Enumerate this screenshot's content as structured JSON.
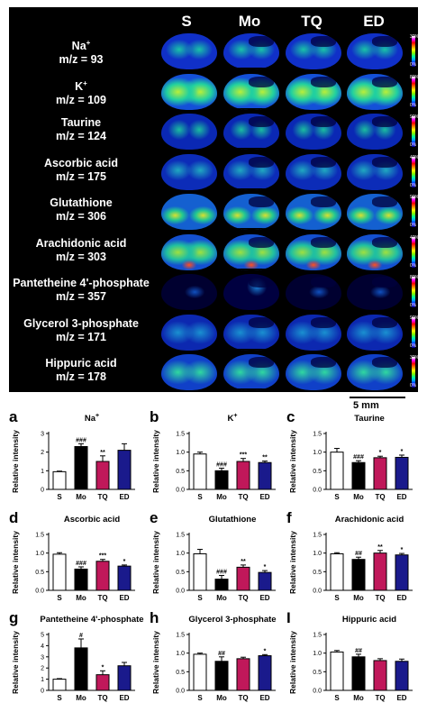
{
  "figure": {
    "columns": [
      "S",
      "Mo",
      "TQ",
      "ED"
    ],
    "scale_bar": "5 mm",
    "rows": [
      {
        "name": "Na",
        "sup": "+",
        "mz": "m/z = 93",
        "cbar_max": "30%",
        "cbar_min": "0%"
      },
      {
        "name": "K",
        "sup": "+",
        "mz": "m/z = 109",
        "cbar_max": "80%",
        "cbar_min": "0%"
      },
      {
        "name": "Taurine",
        "sup": "",
        "mz": "m/z = 124",
        "cbar_max": "90%",
        "cbar_min": "0%"
      },
      {
        "name": "Ascorbic acid",
        "sup": "",
        "mz": "m/z = 175",
        "cbar_max": "40%",
        "cbar_min": "0%"
      },
      {
        "name": "Glutathione",
        "sup": "",
        "mz": "m/z = 306",
        "cbar_max": "90%",
        "cbar_min": "0%"
      },
      {
        "name": "Arachidonic acid",
        "sup": "",
        "mz": "m/z = 303",
        "cbar_max": "40%",
        "cbar_min": "0%"
      },
      {
        "name": "Pantetheine 4'-phosphate",
        "sup": "",
        "mz": "m/z = 357",
        "cbar_max": "80%",
        "cbar_min": "0%"
      },
      {
        "name": "Glycerol 3-phosphate",
        "sup": "",
        "mz": "m/z = 171",
        "cbar_max": "90%",
        "cbar_min": "0%"
      },
      {
        "name": "Hippuric acid",
        "sup": "",
        "mz": "m/z = 178",
        "cbar_max": "30%",
        "cbar_min": "0%"
      }
    ],
    "colors": {
      "S": "#ffffff",
      "Mo": "#000000",
      "TQ": "#c0185a",
      "ED": "#1a1a8c"
    }
  },
  "chart_data": [
    {
      "panel": "a",
      "type": "bar",
      "title": "Na",
      "title_sup": "+",
      "ylabel": "Relative intensity",
      "categories": [
        "S",
        "Mo",
        "TQ",
        "ED"
      ],
      "values": [
        0.95,
        2.3,
        1.5,
        2.1
      ],
      "errors": [
        0.03,
        0.15,
        0.3,
        0.35
      ],
      "sig": [
        "",
        "###",
        "**",
        ""
      ],
      "ylim": [
        0,
        3
      ],
      "yticks": [
        "0",
        "1",
        "2",
        "3"
      ]
    },
    {
      "panel": "b",
      "type": "bar",
      "title": "K",
      "title_sup": "+",
      "ylabel": "Relative intensity",
      "categories": [
        "S",
        "Mo",
        "TQ",
        "ED"
      ],
      "values": [
        0.95,
        0.5,
        0.75,
        0.72
      ],
      "errors": [
        0.05,
        0.07,
        0.08,
        0.04
      ],
      "sig": [
        "",
        "###",
        "***",
        "**"
      ],
      "ylim": [
        0,
        1.5
      ],
      "yticks": [
        "0.0",
        "0.5",
        "1.0",
        "1.5"
      ]
    },
    {
      "panel": "c",
      "type": "bar",
      "title": "Taurine",
      "title_sup": "",
      "ylabel": "Relative intensity",
      "categories": [
        "S",
        "Mo",
        "TQ",
        "ED"
      ],
      "values": [
        1.0,
        0.72,
        0.85,
        0.86
      ],
      "errors": [
        0.1,
        0.05,
        0.04,
        0.06
      ],
      "sig": [
        "",
        "###",
        "*",
        "*"
      ],
      "ylim": [
        0,
        1.5
      ],
      "yticks": [
        "0.0",
        "0.5",
        "1.0",
        "1.5"
      ]
    },
    {
      "panel": "d",
      "type": "bar",
      "title": "Ascorbic acid",
      "title_sup": "",
      "ylabel": "Relative intensity",
      "categories": [
        "S",
        "Mo",
        "TQ",
        "ED"
      ],
      "values": [
        0.97,
        0.57,
        0.78,
        0.65
      ],
      "errors": [
        0.04,
        0.06,
        0.05,
        0.03
      ],
      "sig": [
        "",
        "###",
        "***",
        "*"
      ],
      "ylim": [
        0,
        1.5
      ],
      "yticks": [
        "0.0",
        "0.5",
        "1.0",
        "1.5"
      ]
    },
    {
      "panel": "e",
      "type": "bar",
      "title": "Glutathione",
      "title_sup": "",
      "ylabel": "Relative intensity",
      "categories": [
        "S",
        "Mo",
        "TQ",
        "ED"
      ],
      "values": [
        0.98,
        0.3,
        0.62,
        0.48
      ],
      "errors": [
        0.12,
        0.1,
        0.06,
        0.05
      ],
      "sig": [
        "",
        "###",
        "**",
        "*"
      ],
      "ylim": [
        0,
        1.5
      ],
      "yticks": [
        "0.0",
        "0.5",
        "1.0",
        "1.5"
      ]
    },
    {
      "panel": "f",
      "type": "bar",
      "title": "Arachidonic acid",
      "title_sup": "",
      "ylabel": "Relative intensity",
      "categories": [
        "S",
        "Mo",
        "TQ",
        "ED"
      ],
      "values": [
        0.98,
        0.83,
        1.0,
        0.95
      ],
      "errors": [
        0.03,
        0.06,
        0.07,
        0.04
      ],
      "sig": [
        "",
        "##",
        "**",
        "*"
      ],
      "ylim": [
        0,
        1.5
      ],
      "yticks": [
        "0.0",
        "0.5",
        "1.0",
        "1.5"
      ]
    },
    {
      "panel": "g",
      "type": "bar",
      "title": "Pantetheine 4'-phosphate",
      "title_sup": "",
      "ylabel": "Relative intensity",
      "categories": [
        "S",
        "Mo",
        "TQ",
        "ED"
      ],
      "values": [
        1.0,
        3.8,
        1.4,
        2.2
      ],
      "errors": [
        0.05,
        0.8,
        0.35,
        0.3
      ],
      "sig": [
        "",
        "#",
        "*",
        ""
      ],
      "ylim": [
        0,
        5
      ],
      "yticks": [
        "0",
        "1",
        "2",
        "3",
        "4",
        "5"
      ]
    },
    {
      "panel": "h",
      "type": "bar",
      "title": "Glycerol 3-phosphate",
      "title_sup": "",
      "ylabel": "Relative intensity",
      "categories": [
        "S",
        "Mo",
        "TQ",
        "ED"
      ],
      "values": [
        0.97,
        0.78,
        0.85,
        0.93
      ],
      "errors": [
        0.03,
        0.12,
        0.04,
        0.03
      ],
      "sig": [
        "",
        "##",
        "",
        "*"
      ],
      "ylim": [
        0,
        1.5
      ],
      "yticks": [
        "0.0",
        "0.5",
        "1.0",
        "1.5"
      ]
    },
    {
      "panel": "I",
      "type": "bar",
      "title": "Hippuric acid",
      "title_sup": "",
      "ylabel": "Relative intensity",
      "categories": [
        "S",
        "Mo",
        "TQ",
        "ED"
      ],
      "values": [
        1.03,
        0.9,
        0.8,
        0.78
      ],
      "errors": [
        0.04,
        0.07,
        0.05,
        0.06
      ],
      "sig": [
        "",
        "##",
        "",
        ""
      ],
      "ylim": [
        0,
        1.5
      ],
      "yticks": [
        "0.0",
        "0.5",
        "1.0",
        "1.5"
      ]
    }
  ]
}
